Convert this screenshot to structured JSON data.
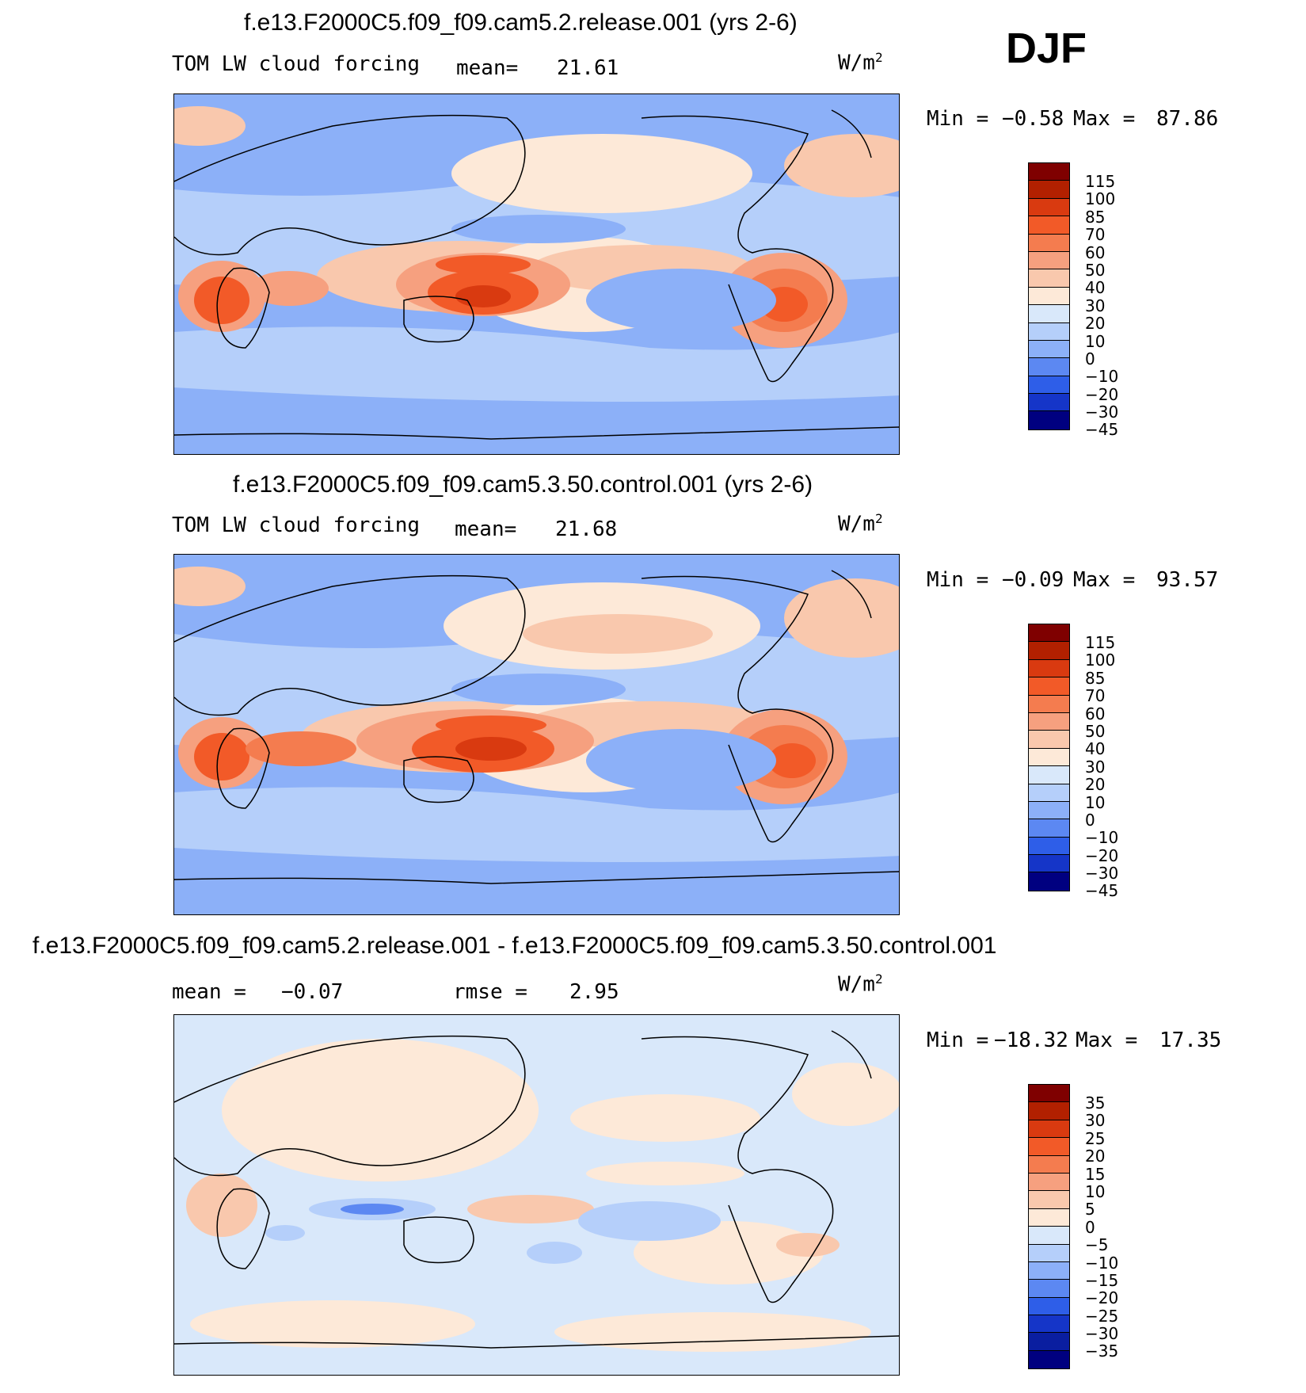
{
  "season": "DJF",
  "units_label": "W/m",
  "units_sup": "2",
  "panels": [
    {
      "title": "f.e13.F2000C5.f09_f09.cam5.2.release.001 (yrs 2-6)",
      "variable": "TOM LW cloud forcing",
      "stat1_label": "mean=",
      "stat1_value": "21.61",
      "min_label": "Min =",
      "min_value": "−0.58",
      "max_label": "Max =",
      "max_value": "87.86",
      "levels": [
        "115",
        "100",
        "85",
        "70",
        "60",
        "50",
        "40",
        "30",
        "20",
        "10",
        "0",
        "−10",
        "−20",
        "−30",
        "−45"
      ]
    },
    {
      "title": "f.e13.F2000C5.f09_f09.cam5.3.50.control.001 (yrs 2-6)",
      "variable": "TOM LW cloud forcing",
      "stat1_label": "mean=",
      "stat1_value": "21.68",
      "min_label": "Min =",
      "min_value": "−0.09",
      "max_label": "Max =",
      "max_value": "93.57",
      "levels": [
        "115",
        "100",
        "85",
        "70",
        "60",
        "50",
        "40",
        "30",
        "20",
        "10",
        "0",
        "−10",
        "−20",
        "−30",
        "−45"
      ]
    },
    {
      "title": "f.e13.F2000C5.f09_f09.cam5.2.release.001 - f.e13.F2000C5.f09_f09.cam5.3.50.control.001",
      "stat1_label": "mean =",
      "stat1_value": "−0.07",
      "stat2_label": "rmse =",
      "stat2_value": "2.95",
      "min_label": "Min =",
      "min_value": "−18.32",
      "max_label": "Max =",
      "max_value": "17.35",
      "levels": [
        "35",
        "30",
        "25",
        "20",
        "15",
        "10",
        "5",
        "0",
        "−5",
        "−10",
        "−15",
        "−20",
        "−25",
        "−30",
        "−35"
      ]
    }
  ],
  "colors": {
    "palette": [
      "#7f0000",
      "#b22000",
      "#d93a10",
      "#f25a28",
      "#f47c4f",
      "#f6a07f",
      "#f9c8ad",
      "#fde9d8",
      "#d9e8fa",
      "#b5cffa",
      "#8cb0f8",
      "#5c88f2",
      "#2e5ee8",
      "#1535c8",
      "#0a1ea0",
      "#000080"
    ],
    "ocean_mid": "#8cb0f8",
    "ocean_light": "#b5cffa",
    "diff_bg": "#d9e8fa",
    "diff_pos": "#fde9d8"
  }
}
